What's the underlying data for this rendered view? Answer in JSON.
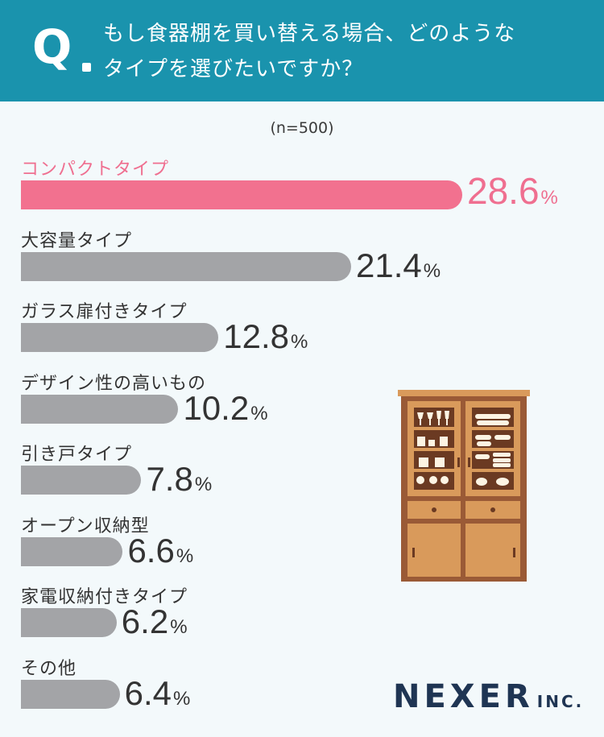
{
  "header": {
    "q_mark": "Q",
    "question_lines": [
      "もし食器棚を買い替える場合、どのような",
      "タイプを選びたいですか？"
    ]
  },
  "sample_size": "(n=500)",
  "chart_data": {
    "type": "bar",
    "orientation": "horizontal",
    "unit": "%",
    "categories": [
      "コンパクトタイプ",
      "大容量タイプ",
      "ガラス扉付きタイプ",
      "デザイン性の高いもの",
      "引き戸タイプ",
      "オープン収納型",
      "家電収納付きタイプ",
      "その他"
    ],
    "values": [
      28.6,
      21.4,
      12.8,
      10.2,
      7.8,
      6.6,
      6.2,
      6.4
    ],
    "value_labels": [
      "28.6",
      "21.4",
      "12.8",
      "10.2",
      "7.8",
      "6.6",
      "6.2",
      "6.4"
    ],
    "highlight_index": 0,
    "colors": {
      "highlight": "#f2718f",
      "default": "#a3a4a7",
      "highlight_text": "#ef6f90",
      "header": "#1a93ad"
    }
  },
  "logo": {
    "main": "NEXER",
    "sub": "INC."
  },
  "illustration": {
    "icon": "cupboard-icon"
  }
}
